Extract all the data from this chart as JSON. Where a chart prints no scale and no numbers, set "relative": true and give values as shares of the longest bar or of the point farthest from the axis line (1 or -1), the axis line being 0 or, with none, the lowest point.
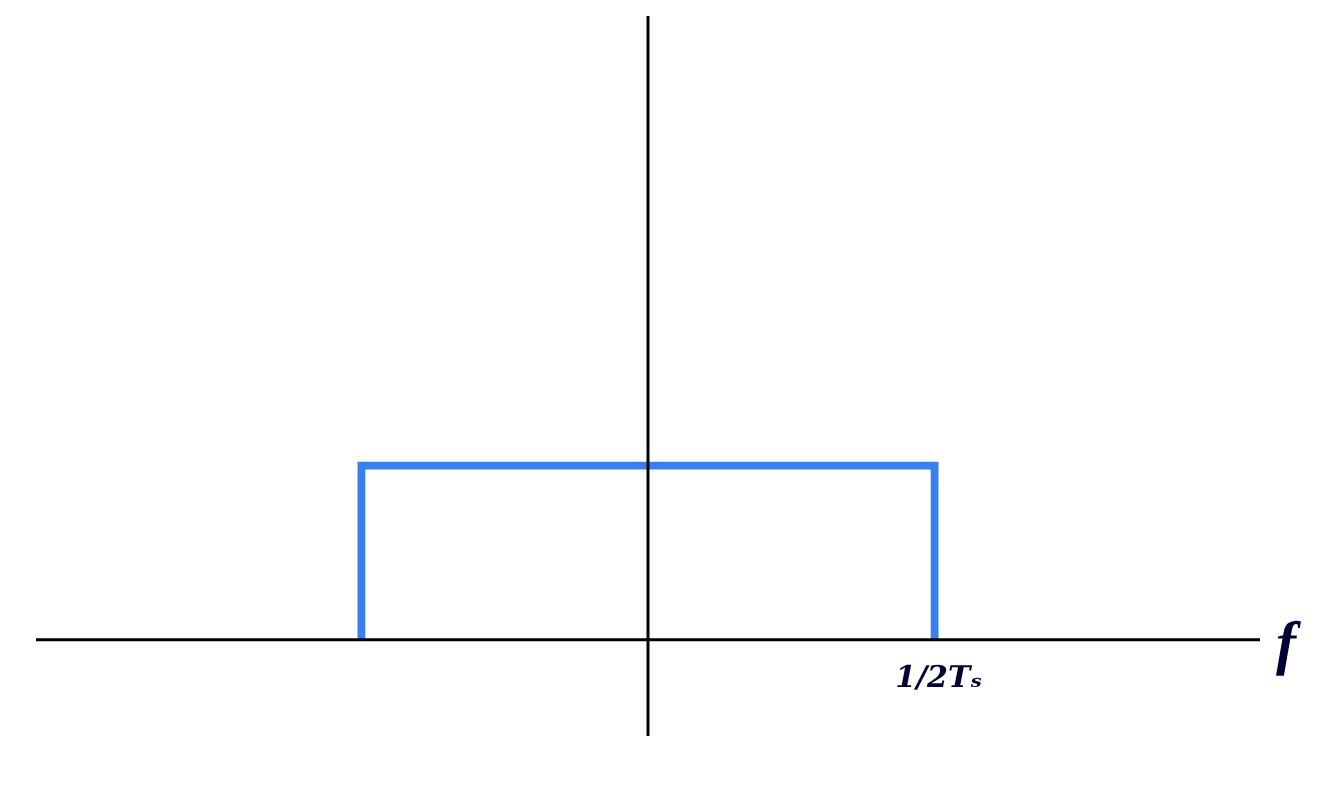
{
  "chart_data": {
    "type": "bar",
    "relative": true,
    "categories": [
      null
    ],
    "series": [
      {
        "color": "#3a7ff0",
        "values": [
          1
        ]
      }
    ],
    "annotations": [
      "1/2Tₛ",
      "f"
    ]
  }
}
